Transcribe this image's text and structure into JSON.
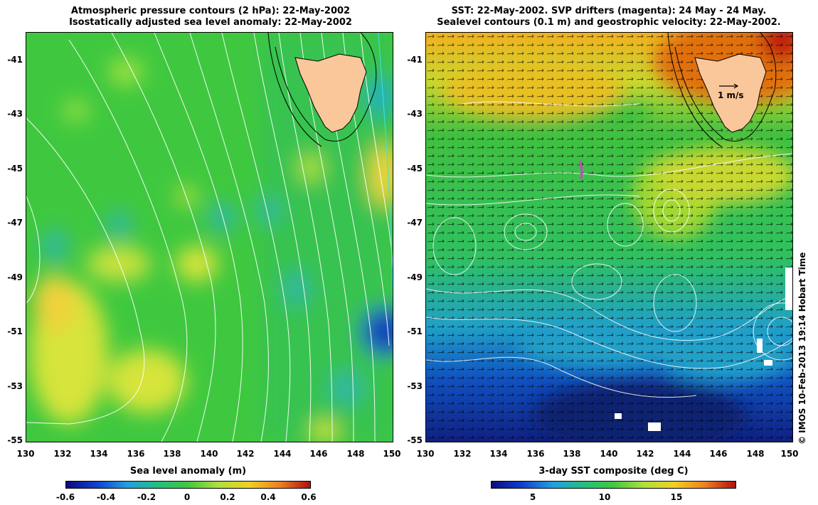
{
  "left_panel": {
    "title_line1": "Atmospheric pressure contours (2 hPa): 22-May-2002",
    "title_line2": "Isostatically adjusted sea level anomaly: 22-May-2002",
    "colorbar_title": "Sea level anomaly (m)",
    "colorbar_ticks": [
      "-0.6",
      "-0.4",
      "-0.2",
      "0",
      "0.2",
      "0.4",
      "0.6"
    ]
  },
  "right_panel": {
    "title_line1": "SST: 22-May-2002. SVP drifters (magenta): 24 May - 24 May.",
    "title_line2": "Sealevel contours (0.1 m) and geostrophic velocity: 22-May-2002.",
    "colorbar_title": "3-day SST composite (deg C)",
    "colorbar_ticks": [
      "5",
      "10",
      "15"
    ],
    "velocity_scale_label": "1 m/s"
  },
  "axes": {
    "x_ticks": [
      "130",
      "132",
      "134",
      "136",
      "138",
      "140",
      "142",
      "144",
      "146",
      "148",
      "150"
    ],
    "y_ticks": [
      "-41",
      "-43",
      "-45",
      "-47",
      "-49",
      "-51",
      "-53",
      "-55"
    ]
  },
  "credit": "© IMOS 10-Feb-2013 19:14 Hobart Time",
  "colors": {
    "land": "#f9c79a",
    "contour": "#ffffff",
    "sla_mid": "#3fc83f",
    "sst_mid": "#2fc060"
  }
}
